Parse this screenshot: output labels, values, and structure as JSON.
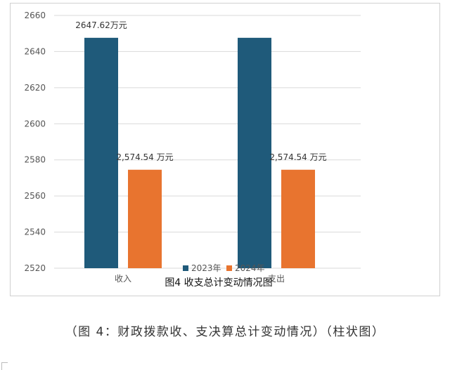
{
  "chart_data": {
    "type": "bar",
    "title": "图4 收支总计变动情况图",
    "categories": [
      "收入",
      "支出"
    ],
    "series": [
      {
        "name": "2023年",
        "color": "#1f5a7a",
        "values": [
          2647.62,
          2647.62
        ],
        "labels": [
          "2647.62万元",
          ""
        ]
      },
      {
        "name": "2024年",
        "color": "#e8742f",
        "values": [
          2574.54,
          2574.54
        ],
        "labels": [
          "2,574.54 万元",
          "2,574.54 万元"
        ]
      }
    ],
    "ylim": [
      2520,
      2660
    ],
    "yticks": [
      2520,
      2540,
      2560,
      2580,
      2600,
      2620,
      2640,
      2660
    ],
    "grid": true,
    "legend": "bottom"
  },
  "caption": "（图 4：财政拨款收、支决算总计变动情况）（柱状图）"
}
